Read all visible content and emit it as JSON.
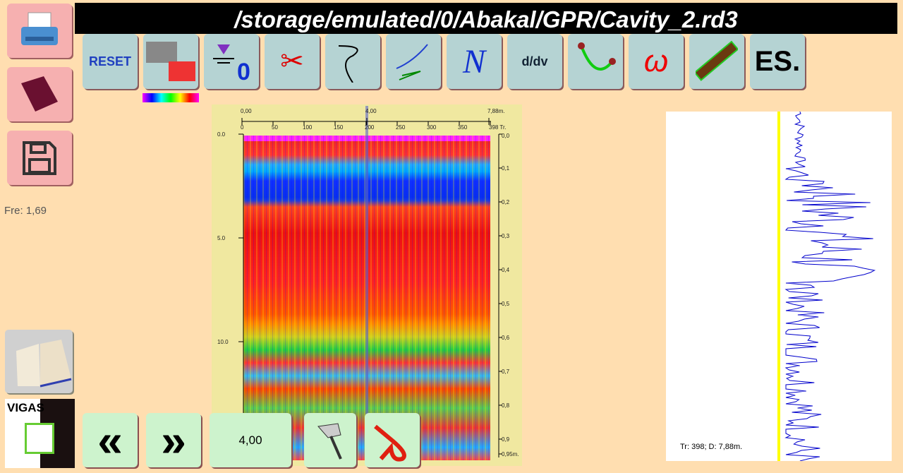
{
  "title": "/storage/emulated/0/Abakal/GPR/Cavity_2.rd3",
  "left": {
    "frequency": "Fre: 1,69",
    "vigas_label": "VIGAS"
  },
  "toolbar": [
    {
      "name": "reset",
      "label": "RESET"
    },
    {
      "name": "palette"
    },
    {
      "name": "zero-level",
      "label": "0"
    },
    {
      "name": "cut"
    },
    {
      "name": "filter"
    },
    {
      "name": "gain"
    },
    {
      "name": "normalize",
      "label": "N"
    },
    {
      "name": "derivative",
      "label": "d/dv"
    },
    {
      "name": "hyperbola"
    },
    {
      "name": "omega",
      "label": "ω"
    },
    {
      "name": "ruler"
    },
    {
      "name": "es",
      "label": "ES."
    }
  ],
  "radargram": {
    "distance_top": [
      "0,00",
      "4,00",
      "7,88m."
    ],
    "trace_ticks": [
      "0",
      "50",
      "100",
      "150",
      "200",
      "250",
      "300",
      "350",
      "398 Tr."
    ],
    "left_ticks": [
      "0.0",
      "5.0",
      "10.0"
    ],
    "right_ticks": [
      "0,0",
      "0,1",
      "0,2",
      "0,3",
      "0,4",
      "0,5",
      "0,6",
      "0,7",
      "0,8",
      "0,9",
      "0,95m."
    ],
    "cursor_trace": 200
  },
  "trace_panel": {
    "info": "Tr: 398; D: 7,88m.",
    "marker_color": "#ffff00",
    "trace_color": "#0000cc"
  },
  "bottom": {
    "prev": "«",
    "next": "»",
    "position_value": "4,00"
  }
}
